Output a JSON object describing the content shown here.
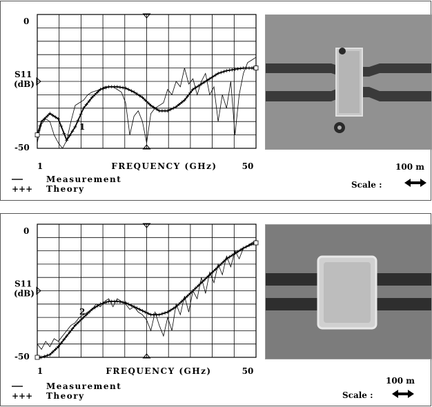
{
  "chart_data": [
    {
      "type": "line",
      "xlabel": "FREQUENCY (GHz)",
      "ylabel": "S11\n(dB)",
      "x_tick_labels": [
        "1",
        "50"
      ],
      "y_tick_labels": [
        "0",
        "-50"
      ],
      "xlim": [
        1,
        53
      ],
      "ylim": [
        -50,
        0
      ],
      "grid": true,
      "curve_label": "1",
      "legend": [
        {
          "symbol": "—",
          "label": "Measurement"
        },
        {
          "symbol": "+++",
          "label": "Theory"
        }
      ],
      "series": [
        {
          "name": "Theory",
          "style": "plus-markers",
          "x": [
            1,
            2,
            4,
            6,
            8,
            10,
            12,
            14,
            16,
            18,
            20,
            22,
            24,
            26,
            28,
            30,
            32,
            34,
            36,
            38,
            40,
            42,
            44,
            46,
            48,
            50,
            52,
            53
          ],
          "y": [
            -45,
            -40,
            -37,
            -39,
            -47,
            -42,
            -35,
            -31,
            -28,
            -27,
            -27,
            -27.5,
            -29,
            -31,
            -34,
            -36,
            -36,
            -34.5,
            -32,
            -28,
            -26,
            -24,
            -22,
            -21,
            -20.5,
            -20,
            -20,
            -20
          ]
        },
        {
          "name": "Measurement",
          "style": "solid",
          "x": [
            1,
            1.5,
            2,
            3,
            4,
            5,
            6,
            7,
            8,
            9,
            10,
            11,
            12,
            13,
            14,
            15,
            16,
            17,
            18,
            19,
            20,
            21,
            22,
            23,
            24,
            25,
            26,
            27,
            28,
            29,
            30,
            31,
            32,
            33,
            34,
            35,
            36,
            37,
            38,
            39,
            40,
            41,
            42,
            43,
            44,
            45,
            46,
            47,
            48,
            49,
            50,
            51,
            52,
            53
          ],
          "y": [
            -48,
            -44,
            -41,
            -39,
            -40,
            -45,
            -48,
            -50,
            -47,
            -40,
            -34,
            -33,
            -32,
            -30,
            -29,
            -28.5,
            -28,
            -27,
            -27,
            -27,
            -28,
            -29,
            -33,
            -45,
            -38,
            -36,
            -40,
            -48,
            -37,
            -35,
            -34,
            -33,
            -28,
            -30,
            -25,
            -27,
            -20,
            -26,
            -24,
            -30,
            -25,
            -22,
            -30,
            -27,
            -40,
            -30,
            -35,
            -25,
            -45,
            -30,
            -22,
            -18,
            -17,
            -16
          ]
        }
      ]
    },
    {
      "type": "line",
      "xlabel": "FREQUENCY (GHz)",
      "ylabel": "S11\n(dB)",
      "x_tick_labels": [
        "1",
        "50"
      ],
      "y_tick_labels": [
        "0",
        "-50"
      ],
      "xlim": [
        1,
        53
      ],
      "ylim": [
        -50,
        0
      ],
      "grid": true,
      "curve_label": "2",
      "legend": [
        {
          "symbol": "—",
          "label": "Measurement"
        },
        {
          "symbol": "+++",
          "label": "Theory"
        }
      ],
      "series": [
        {
          "name": "Theory",
          "style": "plus-markers",
          "x": [
            1,
            2,
            4,
            6,
            8,
            10,
            12,
            14,
            16,
            18,
            20,
            22,
            24,
            26,
            28,
            30,
            32,
            34,
            36,
            38,
            40,
            42,
            44,
            46,
            48,
            50,
            52,
            53
          ],
          "y": [
            -50,
            -50,
            -49,
            -46,
            -42,
            -38,
            -35,
            -32,
            -30,
            -29,
            -29,
            -29.5,
            -31,
            -32.5,
            -34,
            -34,
            -33,
            -31,
            -28,
            -25,
            -22,
            -19,
            -16,
            -13,
            -11,
            -9,
            -7.5,
            -7
          ]
        },
        {
          "name": "Measurement",
          "style": "solid",
          "x": [
            1,
            2,
            3,
            4,
            5,
            6,
            7,
            8,
            9,
            10,
            11,
            12,
            13,
            14,
            15,
            16,
            17,
            18,
            19,
            20,
            21,
            22,
            23,
            24,
            25,
            26,
            27,
            28,
            29,
            30,
            31,
            32,
            33,
            34,
            35,
            36,
            37,
            38,
            39,
            40,
            41,
            42,
            43,
            44,
            45,
            46,
            47,
            48,
            49,
            50,
            51,
            52,
            53
          ],
          "y": [
            -45,
            -47,
            -44,
            -46,
            -43,
            -44,
            -42,
            -40,
            -38,
            -37,
            -35,
            -34,
            -33,
            -32,
            -30,
            -31,
            -29,
            -28,
            -31,
            -28,
            -29,
            -30,
            -32,
            -31,
            -33,
            -34,
            -36,
            -40,
            -33,
            -38,
            -42,
            -35,
            -40,
            -30,
            -34,
            -27,
            -33,
            -25,
            -28,
            -20,
            -26,
            -18,
            -22,
            -15,
            -19,
            -12,
            -16,
            -10,
            -13,
            -9,
            -8,
            -7,
            -6
          ]
        }
      ]
    }
  ],
  "photos": [
    {
      "scale_value": "100  m",
      "scale_label": "Scale :"
    },
    {
      "scale_value": "100  m",
      "scale_label": "Scale :"
    }
  ]
}
